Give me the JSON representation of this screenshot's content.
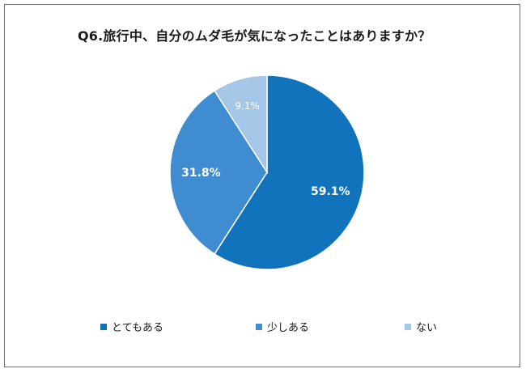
{
  "chart_data": {
    "type": "pie",
    "title": "Q6.旅行中、自分のムダ毛が気になったことはありますか？",
    "categories": [
      "とてもある",
      "少しある",
      "ない"
    ],
    "values": [
      59.1,
      31.8,
      9.1
    ],
    "value_labels": [
      "59.1%",
      "31.8%",
      "9.1%"
    ],
    "colors": [
      "#1273bd",
      "#3f8dd0",
      "#a5c7e7"
    ],
    "label_colors": [
      "#ffffff",
      "#ffffff",
      "#ffffff"
    ],
    "start_angle_deg": 0,
    "direction": "clockwise",
    "legend_position": "bottom"
  }
}
